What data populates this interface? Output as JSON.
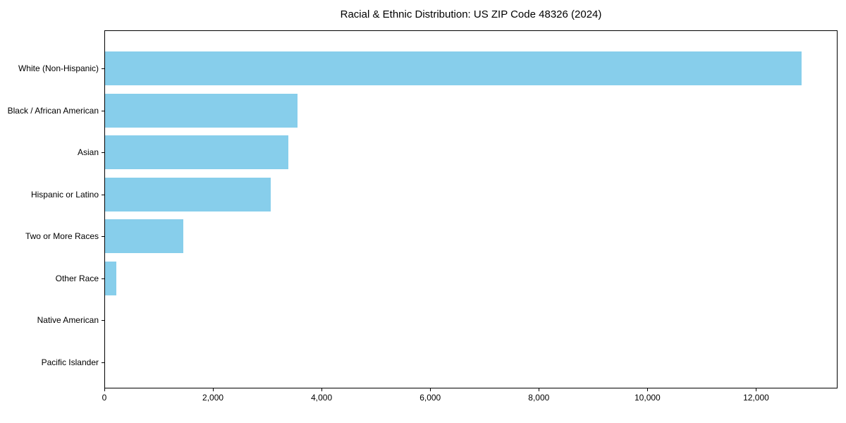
{
  "chart_data": {
    "type": "bar",
    "orientation": "horizontal",
    "title": "Racial & Ethnic Distribution: US ZIP Code 48326 (2024)",
    "categories": [
      "White (Non-Hispanic)",
      "Black / African American",
      "Asian",
      "Hispanic or Latino",
      "Two or More Races",
      "Other Race",
      "Native American",
      "Pacific Islander"
    ],
    "values": [
      12820,
      3550,
      3370,
      3050,
      1440,
      210,
      0,
      0
    ],
    "xlabel": "",
    "ylabel": "",
    "xlim": [
      0,
      13500
    ],
    "xticks": [
      0,
      2000,
      4000,
      6000,
      8000,
      10000,
      12000
    ],
    "xtick_labels": [
      "0",
      "2,000",
      "4,000",
      "6,000",
      "8,000",
      "10,000",
      "12,000"
    ],
    "grid": false,
    "bar_color": "#87CEEB",
    "spine_color": "#000000",
    "text_color": "#000000",
    "background_color": "#FFFFFF"
  }
}
